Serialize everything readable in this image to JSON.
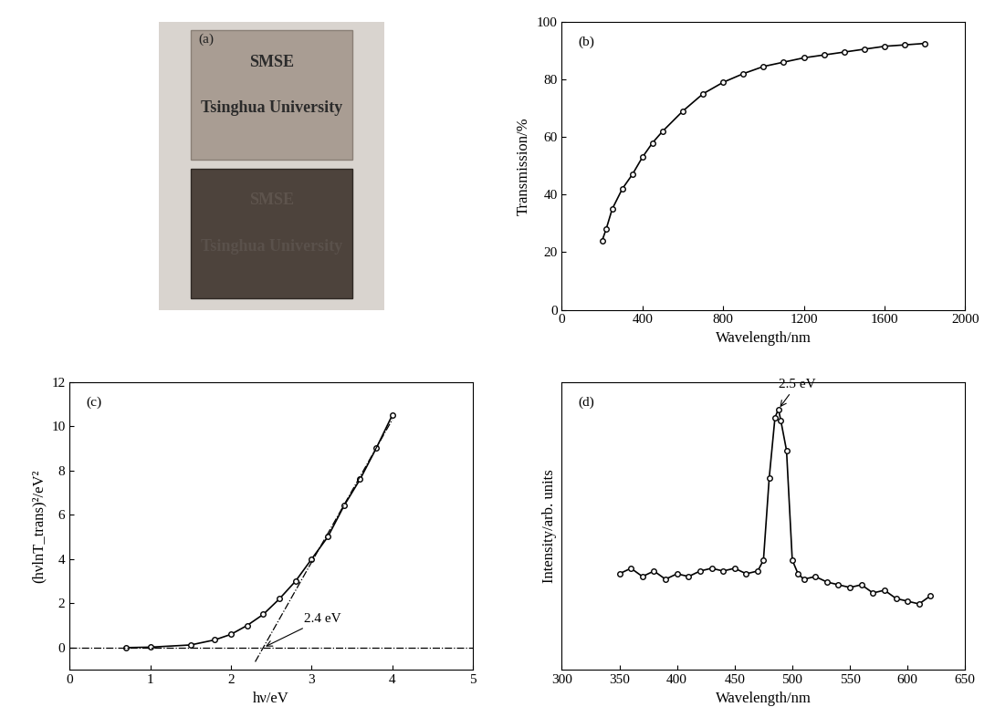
{
  "chart_data": [
    {
      "type": "photo",
      "title": "(a)",
      "texts": [
        "SMSE",
        "Tsinghua University",
        "SMSE",
        "Tsinghua University"
      ]
    },
    {
      "type": "line",
      "title": "(b)",
      "x_label": "Wavelength/nm",
      "y_label": "Transmission/%",
      "x": [
        200,
        220,
        250,
        300,
        350,
        400,
        450,
        500,
        600,
        700,
        800,
        900,
        1000,
        1100,
        1200,
        1300,
        1400,
        1500,
        1600,
        1700,
        1800
      ],
      "values": [
        24,
        28,
        35,
        42,
        47,
        53,
        58,
        62,
        69,
        75,
        79,
        82,
        84.5,
        86,
        87.5,
        88.5,
        89.5,
        90.5,
        91.5,
        92,
        92.5
      ],
      "xlim": [
        0,
        2000
      ],
      "xticks": [
        0,
        400,
        800,
        1200,
        1600,
        2000
      ],
      "ylim": [
        0,
        100
      ],
      "yticks": [
        0,
        20,
        40,
        60,
        80,
        100
      ],
      "color": "#000000",
      "marker": "o"
    },
    {
      "type": "line",
      "title": "(c)",
      "x_label": "hν/eV",
      "y_label": "(hνlnT_trans)²/eV²",
      "x": [
        0.7,
        1.0,
        1.5,
        1.8,
        2.0,
        2.2,
        2.4,
        2.6,
        2.8,
        3.0,
        3.2,
        3.4,
        3.6,
        3.8,
        4.0
      ],
      "values": [
        0,
        0.02,
        0.12,
        0.35,
        0.6,
        1.0,
        1.5,
        2.2,
        3.0,
        4.0,
        5.0,
        6.4,
        7.6,
        9.0,
        10.5
      ],
      "xlim": [
        0,
        5
      ],
      "xticks": [
        0,
        1,
        2,
        3,
        4,
        5
      ],
      "ylim": [
        -1,
        12
      ],
      "yticks": [
        0,
        2,
        4,
        6,
        8,
        10,
        12
      ],
      "color": "#000000",
      "marker": "o",
      "tangent": {
        "x": [
          2.3,
          4.0
        ],
        "values": [
          -0.64,
          10.3
        ]
      },
      "baseline": 0,
      "annotation": {
        "text": "2.4 eV",
        "x": 2.4,
        "y": 0
      }
    },
    {
      "type": "line",
      "title": "(d)",
      "x_label": "Wavelength/nm",
      "y_label": "Intensity/arb. units",
      "x": [
        350,
        360,
        370,
        380,
        390,
        400,
        410,
        420,
        430,
        440,
        450,
        460,
        470,
        475,
        480,
        485,
        488,
        490,
        495,
        500,
        505,
        510,
        520,
        530,
        540,
        550,
        560,
        570,
        580,
        590,
        600,
        610,
        620
      ],
      "values": [
        0.4,
        0.42,
        0.39,
        0.41,
        0.38,
        0.4,
        0.39,
        0.41,
        0.42,
        0.41,
        0.42,
        0.4,
        0.41,
        0.45,
        0.75,
        0.97,
        1.0,
        0.96,
        0.85,
        0.45,
        0.4,
        0.38,
        0.39,
        0.37,
        0.36,
        0.35,
        0.36,
        0.33,
        0.34,
        0.31,
        0.3,
        0.29,
        0.32
      ],
      "xlim": [
        300,
        650
      ],
      "xticks": [
        300,
        350,
        400,
        450,
        500,
        550,
        600,
        650
      ],
      "ylim": [
        0.05,
        1.1
      ],
      "yticks": [],
      "tick_labels": "x",
      "color": "#000000",
      "marker": "o",
      "annotation": {
        "text": "2.5 eV",
        "x": 488,
        "y": 1.0
      }
    }
  ]
}
